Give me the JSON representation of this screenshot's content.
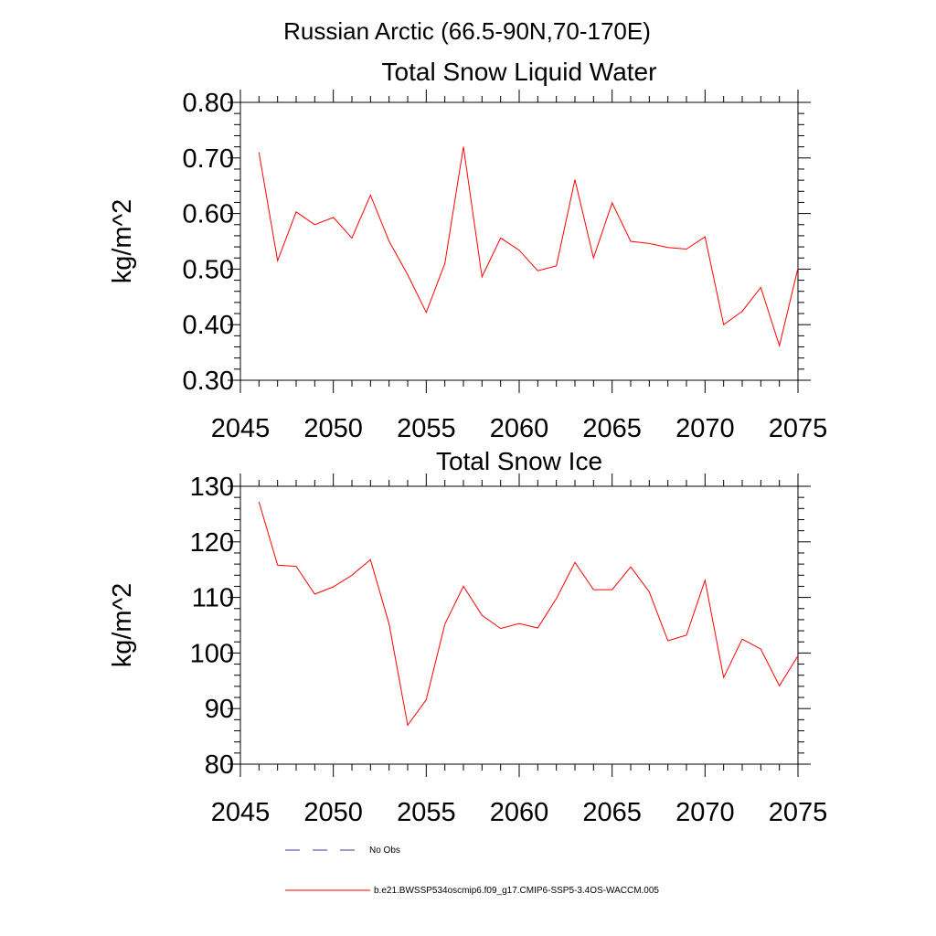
{
  "figure_title": "Russian Arctic (66.5-90N,70-170E)",
  "colors": {
    "model_line": "#ff0000",
    "obs_line": "#3b3b8f",
    "axes": "#000000"
  },
  "legend": [
    {
      "label": "No Obs",
      "style": "dashed"
    },
    {
      "label": "b.e21.BWSSP534oscmip6.f09_g17.CMIP6-SSP5-3.4OS-WACCM.005",
      "style": "solid"
    }
  ],
  "chart_data": [
    {
      "type": "line",
      "title": "Total Snow Liquid Water",
      "xlabel": "",
      "ylabel": "kg/m^2",
      "xlim": [
        2045,
        2075
      ],
      "ylim": [
        0.3,
        0.8
      ],
      "xticks": [
        2045,
        2050,
        2055,
        2060,
        2065,
        2070,
        2075
      ],
      "yticks": [
        "0.30",
        "0.40",
        "0.50",
        "0.60",
        "0.70",
        "0.80"
      ],
      "grid": false,
      "series": [
        {
          "name": "b.e21.BWSSP534oscmip6.f09_g17.CMIP6-SSP5-3.4OS-WACCM.005",
          "x": [
            2046,
            2047,
            2048,
            2049,
            2050,
            2051,
            2052,
            2053,
            2054,
            2055,
            2056,
            2057,
            2058,
            2059,
            2060,
            2061,
            2062,
            2063,
            2064,
            2065,
            2066,
            2067,
            2068,
            2069,
            2070,
            2071,
            2072,
            2073,
            2074,
            2075
          ],
          "y": [
            0.71,
            0.515,
            0.603,
            0.58,
            0.593,
            0.556,
            0.633,
            0.55,
            0.49,
            0.422,
            0.51,
            0.72,
            0.486,
            0.556,
            0.534,
            0.497,
            0.506,
            0.661,
            0.52,
            0.619,
            0.55,
            0.546,
            0.539,
            0.536,
            0.558,
            0.4,
            0.424,
            0.467,
            0.362,
            0.502
          ]
        }
      ]
    },
    {
      "type": "line",
      "title": "Total Snow Ice",
      "xlabel": "",
      "ylabel": "kg/m^2",
      "xlim": [
        2045,
        2075
      ],
      "ylim": [
        80,
        130
      ],
      "xticks": [
        2045,
        2050,
        2055,
        2060,
        2065,
        2070,
        2075
      ],
      "yticks": [
        "80",
        "90",
        "100",
        "110",
        "120",
        "130"
      ],
      "grid": false,
      "series": [
        {
          "name": "b.e21.BWSSP534oscmip6.f09_g17.CMIP6-SSP5-3.4OS-WACCM.005",
          "x": [
            2046,
            2047,
            2048,
            2049,
            2050,
            2051,
            2052,
            2053,
            2054,
            2055,
            2056,
            2057,
            2058,
            2059,
            2060,
            2061,
            2062,
            2063,
            2064,
            2065,
            2066,
            2067,
            2068,
            2069,
            2070,
            2071,
            2072,
            2073,
            2074,
            2075
          ],
          "y": [
            127.2,
            115.8,
            115.6,
            110.6,
            111.9,
            114.0,
            116.8,
            105.2,
            87.0,
            91.6,
            105.2,
            112.0,
            106.8,
            104.4,
            105.3,
            104.5,
            109.8,
            116.3,
            111.4,
            111.4,
            115.5,
            111.0,
            102.2,
            103.2,
            113.1,
            95.6,
            102.5,
            100.7,
            94.1,
            99.5
          ]
        }
      ]
    }
  ]
}
